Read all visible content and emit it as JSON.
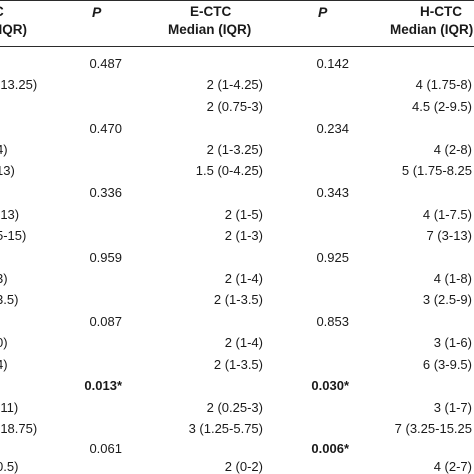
{
  "header": {
    "col1_line1": "C",
    "col1_line2": "(IQR)",
    "p1": "P",
    "ectc_title": "E-CTC",
    "ectc_sub": "Median (IQR)",
    "p2": "P",
    "hctc_title": "H-CTC",
    "hctc_sub": "Median (IQR)"
  },
  "rows": [
    {
      "p1": "0.487",
      "p2": "0.142"
    },
    {
      "c1": "-13.25)",
      "ectc": "2 (1-4.25)",
      "hctc": "4 (1.75-8)"
    },
    {
      "c1": "",
      "ectc": "2 (0.75-3)",
      "hctc": "4.5 (2-9.5)"
    },
    {
      "p1": "0.470",
      "p2": "0.234"
    },
    {
      "c1": "4)",
      "ectc": "2 (1-3.25)",
      "hctc": "4 (2-8)"
    },
    {
      "c1": "13)",
      "ectc": "1.5 (0-4.25)",
      "hctc": "5 (1.75-8.25"
    },
    {
      "p1": "0.336",
      "p2": "0.343"
    },
    {
      "c1": "-13)",
      "ectc": "2 (1-5)",
      "hctc": "4 (1-7.5)"
    },
    {
      "c1": "5-15)",
      "ectc": "2 (1-3)",
      "hctc": "7 (3-13)"
    },
    {
      "p1": "0.959",
      "p2": "0.925"
    },
    {
      "c1": "3)",
      "ectc": "2 (1-4)",
      "hctc": "4 (1-8)"
    },
    {
      "c1": "3.5)",
      "ectc": "2 (1-3.5)",
      "hctc": "3 (2.5-9)"
    },
    {
      "p1": "0.087",
      "p2": "0.853"
    },
    {
      "c1": "0)",
      "ectc": "2 (1-4)",
      "hctc": "3 (1-6)"
    },
    {
      "c1": "4)",
      "ectc": "2 (1-3.5)",
      "hctc": "6 (3-9.5)"
    },
    {
      "p1": "0.013*",
      "p2": "0.030*"
    },
    {
      "c1": "-11)",
      "ectc": "2 (0.25-3)",
      "hctc": "3 (1-7)"
    },
    {
      "c1": "-18.75)",
      "ectc": "3 (1.25-5.75)",
      "hctc": "7 (3.25-15.25"
    },
    {
      "p1": "0.061",
      "p2": "0.006*"
    },
    {
      "c1": "0.5)",
      "ectc": "2 (0-2)",
      "hctc": "4 (2-7)"
    }
  ]
}
